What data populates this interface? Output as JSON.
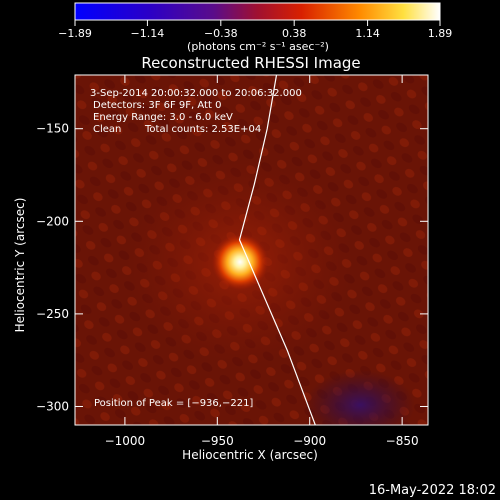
{
  "chart_data": {
    "type": "heatmap",
    "title": "Reconstructed RHESSI Image",
    "xlabel": "Heliocentric X (arcsec)",
    "ylabel": "Heliocentric Y (arcsec)",
    "xlim": [
      -1027,
      -836
    ],
    "ylim": [
      -310,
      -121
    ],
    "x_ticks": [
      -1000,
      -950,
      -900,
      -850
    ],
    "x_tick_labels": [
      "−1000",
      "−950",
      "−900",
      "−850"
    ],
    "y_ticks": [
      -150,
      -200,
      -250,
      -300
    ],
    "y_tick_labels": [
      "−150",
      "−200",
      "−250",
      "−300"
    ],
    "colorbar": {
      "range": [
        -1.89,
        1.89
      ],
      "ticks": [
        -1.89,
        -1.14,
        -0.38,
        0.38,
        1.14,
        1.89
      ],
      "tick_labels": [
        "−1.89",
        "−1.14",
        "−0.38",
        "0.38",
        "1.14",
        "1.89"
      ],
      "unit_label": "(photons cm⁻² s⁻¹ asec⁻²)",
      "colormap": "blue-purple-red-yellow-white"
    },
    "annotations": {
      "time_range": "3-Sep-2014 20:00:32.000 to 20:06:32.000",
      "detectors": "Detectors: 3F 6F 9F, Att 0",
      "energy_range": "Energy Range: 3.0 - 6.0 keV",
      "algorithm": "Clean",
      "total_counts": "Total counts: 2.53E+04",
      "peak_position": "Position of Peak = [−936,−221]"
    },
    "peak": {
      "x": -936,
      "y": -221,
      "value": 1.89
    },
    "limb": {
      "x": [
        -918,
        -923,
        -930,
        -938,
        -912,
        -897
      ],
      "y": [
        -121,
        -150,
        -180,
        -210,
        -270,
        -310
      ]
    },
    "background_level": 0.35,
    "negative_region": {
      "x": -868,
      "y": -300
    }
  },
  "footer": {
    "timestamp": "16-May-2022 18:02"
  }
}
